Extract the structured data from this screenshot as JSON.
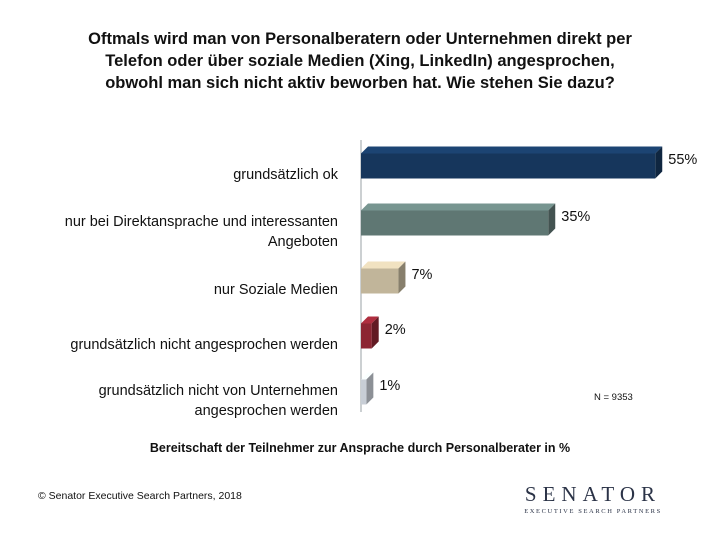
{
  "chart_data": {
    "type": "bar",
    "orientation": "horizontal",
    "title": "Oftmals wird man von Personalberatern oder Unternehmen direkt per Telefon oder über soziale Medien (Xing, LinkedIn) angesprochen, obwohl man sich nicht aktiv beworben hat. Wie stehen Sie dazu?",
    "categories": [
      "grundsätzlich ok",
      "nur bei Direktansprache und interessanten Angeboten",
      "nur Soziale Medien",
      "grundsätzlich nicht angesprochen werden",
      "grundsätzlich nicht von Unternehmen angesprochen werden"
    ],
    "values": [
      55,
      35,
      7,
      2,
      1
    ],
    "value_labels": [
      "55%",
      "35%",
      "7%",
      "2%",
      "1%"
    ],
    "colors": [
      "#16365c",
      "#5f7773",
      "#c1b59a",
      "#8c2532",
      "#c8ced6"
    ],
    "xlabel": "Bereitschaft der Teilnehmer zur Ansprache durch Personalberater in %",
    "ylabel": "",
    "xlim": [
      0,
      55
    ],
    "grid": false,
    "legend": "none",
    "bar_style": "3d",
    "note": "N = 9353"
  },
  "footer": {
    "copyright": "© Senator Executive Search Partners, 2018",
    "logo_text": "SENATOR",
    "logo_subtitle": "EXECUTIVE SEARCH PARTNERS"
  }
}
